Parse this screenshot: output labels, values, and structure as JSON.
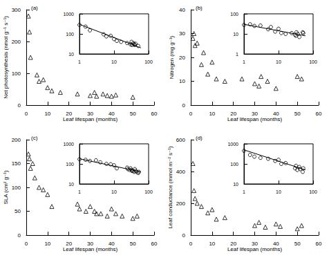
{
  "chart_data": [
    {
      "type": "scatter",
      "label": "(a)",
      "x_label": "Leaf lifespan (months)",
      "y_label": "Net photosynthesis (nmol g⁻¹ s⁻¹)",
      "marker": "triangle",
      "color": "#000000",
      "xlim": [
        0,
        60
      ],
      "xticks": [
        0,
        10,
        20,
        30,
        40,
        50,
        60
      ],
      "ylim": [
        0,
        300
      ],
      "yticks": [
        0,
        100,
        200,
        300
      ],
      "x": [
        1,
        1.5,
        2,
        5,
        6,
        8,
        10,
        12,
        16,
        24,
        30,
        32,
        33,
        36,
        38,
        40,
        42,
        50
      ],
      "values": [
        280,
        230,
        150,
        95,
        75,
        80,
        55,
        45,
        40,
        35,
        30,
        40,
        28,
        35,
        30,
        28,
        32,
        25
      ],
      "inset": {
        "type": "scatter",
        "log": true,
        "marker": "circle",
        "xlim": [
          1,
          100
        ],
        "xticks": [
          1,
          10,
          100
        ],
        "ylim": [
          10,
          1000
        ],
        "yticks": [
          10,
          100,
          1000
        ],
        "fit": {
          "x": [
            1,
            60
          ],
          "values": [
            300,
            20
          ]
        }
      }
    },
    {
      "type": "scatter",
      "label": "(b)",
      "x_label": "Leaf lifespan (months)",
      "y_label": "Nitrogen (mg g⁻¹)",
      "marker": "triangle",
      "color": "#000000",
      "xlim": [
        0,
        60
      ],
      "xticks": [
        0,
        10,
        20,
        30,
        40,
        50,
        60
      ],
      "ylim": [
        0,
        40
      ],
      "yticks": [
        0,
        10,
        20,
        30,
        40
      ],
      "x": [
        1,
        1.5,
        2,
        3,
        5,
        6,
        8,
        10,
        12,
        16,
        24,
        30,
        32,
        33,
        36,
        40,
        50,
        52
      ],
      "values": [
        28,
        30,
        25,
        26,
        17,
        22,
        13,
        18,
        11,
        10,
        11,
        9,
        8,
        12,
        10,
        7,
        12,
        11
      ],
      "inset": {
        "type": "scatter",
        "log": true,
        "marker": "circle",
        "xlim": [
          1,
          100
        ],
        "xticks": [
          1,
          10,
          100
        ],
        "ylim": [
          1,
          100
        ],
        "yticks": [
          1,
          10,
          100
        ],
        "fit": {
          "x": [
            1,
            60
          ],
          "values": [
            30,
            8
          ]
        }
      }
    },
    {
      "type": "scatter",
      "label": "(c)",
      "x_label": "Leaf lifespan (months)",
      "y_label": "SLA (cm² g⁻¹)",
      "marker": "triangle",
      "color": "#000000",
      "xlim": [
        0,
        60
      ],
      "xticks": [
        0,
        10,
        20,
        30,
        40,
        50,
        60
      ],
      "ylim": [
        0,
        200
      ],
      "yticks": [
        0,
        50,
        100,
        150,
        200
      ],
      "x": [
        1,
        1.5,
        2,
        3,
        4,
        6,
        8,
        10,
        12,
        24,
        25,
        28,
        30,
        32,
        33,
        35,
        38,
        40,
        42,
        45,
        50,
        52
      ],
      "values": [
        170,
        160,
        140,
        150,
        120,
        100,
        95,
        85,
        60,
        65,
        55,
        50,
        60,
        50,
        45,
        45,
        40,
        55,
        45,
        40,
        35,
        40
      ],
      "inset": {
        "type": "scatter",
        "log": true,
        "marker": "circle",
        "xlim": [
          1,
          100
        ],
        "xticks": [
          1,
          10,
          100
        ],
        "ylim": [
          10,
          1000
        ],
        "yticks": [
          10,
          100,
          1000
        ],
        "fit": {
          "x": [
            1,
            60
          ],
          "values": [
            180,
            40
          ]
        }
      }
    },
    {
      "type": "scatter",
      "label": "(d)",
      "x_label": "Leaf lifespan (months)",
      "y_label": "Leaf conductance (mmol m⁻² s⁻¹)",
      "marker": "triangle",
      "color": "#000000",
      "xlim": [
        0,
        60
      ],
      "xticks": [
        0,
        10,
        20,
        30,
        40,
        50,
        60
      ],
      "ylim": [
        0,
        600
      ],
      "yticks": [
        0,
        200,
        400,
        600
      ],
      "x": [
        1,
        1.5,
        2,
        3,
        5,
        8,
        10,
        12,
        16,
        30,
        32,
        35,
        40,
        42,
        50,
        52
      ],
      "values": [
        450,
        280,
        230,
        200,
        180,
        140,
        160,
        100,
        110,
        60,
        80,
        50,
        70,
        55,
        40,
        60
      ],
      "inset": {
        "type": "scatter",
        "log": true,
        "marker": "circle",
        "xlim": [
          1,
          100
        ],
        "xticks": [
          1,
          10,
          100
        ],
        "ylim": [
          10,
          1000
        ],
        "yticks": [
          10,
          100,
          1000
        ],
        "fit": {
          "x": [
            1,
            60
          ],
          "values": [
            500,
            50
          ]
        }
      }
    }
  ]
}
